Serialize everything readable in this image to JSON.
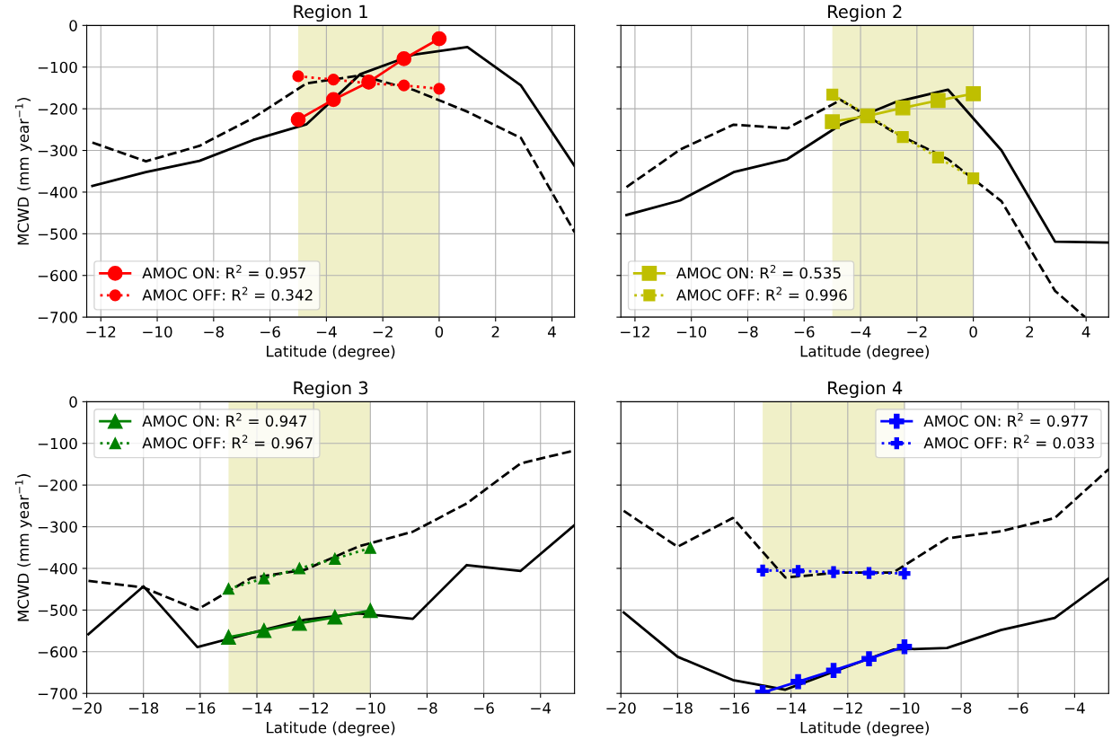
{
  "chart_data": [
    {
      "type": "line",
      "title": "Region 1",
      "xlabel": "Latitude (degree)",
      "ylabel": "MCWD (mm year$^{−1}$)",
      "xlim": [
        -12.5,
        4.8
      ],
      "ylim": [
        -700,
        0
      ],
      "xticks": [
        -12,
        -10,
        -8,
        -6,
        -4,
        -2,
        0,
        2,
        4
      ],
      "yticks": [
        -700,
        -600,
        -500,
        -400,
        -300,
        -200,
        -100,
        0
      ],
      "grid": true,
      "legend": "bottom left",
      "bands": [
        {
          "axis": "x",
          "from": -5,
          "to": 0,
          "color": "#f0f0c8"
        }
      ],
      "series": [
        {
          "color": "#000000",
          "line_style": "solid",
          "marker": "none",
          "x": [
            -12.3,
            -10.4,
            -8.5,
            -6.6,
            -4.7,
            -2.8,
            -0.9,
            1.0,
            2.9,
            4.8
          ],
          "values": [
            -385,
            -352,
            -325,
            -275,
            -237,
            -117,
            -70,
            -52,
            -144,
            -337
          ]
        },
        {
          "color": "#000000",
          "line_style": "dashed",
          "marker": "none",
          "x": [
            -12.3,
            -10.4,
            -8.5,
            -6.6,
            -4.7,
            -2.8,
            -0.9,
            1.0,
            2.9,
            4.8
          ],
          "values": [
            -281,
            -326,
            -289,
            -222,
            -139,
            -120,
            -155,
            -207,
            -270,
            -496
          ]
        },
        {
          "name": "AMOC ON: R$^{2}$ = 0.957",
          "color": "#ff0000",
          "line_style": "solid",
          "marker": "circle",
          "x": [
            -5,
            -3.75,
            -2.5,
            -1.25,
            0
          ],
          "values": [
            -226,
            -178,
            -136,
            -80,
            -32
          ]
        },
        {
          "name": "AMOC OFF: R$^{2}$ = 0.342",
          "color": "#ff0000",
          "line_style": "dotted",
          "marker": "circle",
          "x": [
            -5,
            -3.75,
            -2.5,
            -1.25,
            0
          ],
          "values": [
            -122,
            -130,
            -139,
            -144,
            -152
          ]
        }
      ]
    },
    {
      "type": "line",
      "title": "Region 2",
      "xlabel": "Latitude (degree)",
      "xlim": [
        -12.5,
        4.8
      ],
      "ylim": [
        -700,
        0
      ],
      "xticks": [
        -12,
        -10,
        -8,
        -6,
        -4,
        -2,
        0,
        2,
        4
      ],
      "yticks": [
        -700,
        -600,
        -500,
        -400,
        -300,
        -200,
        -100,
        0
      ],
      "tick_labels": "x",
      "grid": true,
      "legend": "bottom left",
      "bands": [
        {
          "axis": "x",
          "from": -5,
          "to": 0,
          "color": "#f0f0c8"
        }
      ],
      "series": [
        {
          "color": "#000000",
          "line_style": "solid",
          "marker": "none",
          "x": [
            -12.3,
            -10.4,
            -8.5,
            -6.6,
            -4.7,
            -2.8,
            -0.9,
            1.0,
            2.9,
            4.8
          ],
          "values": [
            -455,
            -420,
            -352,
            -321,
            -238,
            -185,
            -154,
            -300,
            -519,
            -521
          ]
        },
        {
          "color": "#000000",
          "line_style": "dashed",
          "marker": "none",
          "x": [
            -12.3,
            -10.4,
            -8.5,
            -6.6,
            -4.7,
            -2.8,
            -0.9,
            1.0,
            2.9,
            3.96
          ],
          "values": [
            -388,
            -298,
            -238,
            -247,
            -179,
            -257,
            -321,
            -422,
            -637,
            -700
          ]
        },
        {
          "name": "AMOC ON: R$^{2}$ = 0.535",
          "color": "#bfbf00",
          "line_style": "solid",
          "marker": "square",
          "x": [
            -5,
            -3.75,
            -2.5,
            -1.25,
            0
          ],
          "values": [
            -231,
            -217,
            -198,
            -180,
            -164
          ]
        },
        {
          "name": "AMOC OFF: R$^{2}$ = 0.996",
          "color": "#bfbf00",
          "line_style": "dotted",
          "marker": "square",
          "x": [
            -5,
            -3.75,
            -2.5,
            -1.25,
            0
          ],
          "values": [
            -166,
            -215,
            -268,
            -317,
            -367
          ]
        }
      ]
    },
    {
      "type": "line",
      "title": "Region 3",
      "xlabel": "Latitude (degree)",
      "ylabel": "MCWD (mm year$^{−1}$)",
      "xlim": [
        -20,
        -2.8
      ],
      "ylim": [
        -700,
        0
      ],
      "xticks": [
        -20,
        -18,
        -16,
        -14,
        -12,
        -10,
        -8,
        -6,
        -4
      ],
      "yticks": [
        -700,
        -600,
        -500,
        -400,
        -300,
        -200,
        -100,
        0
      ],
      "grid": true,
      "legend": "top left",
      "bands": [
        {
          "axis": "x",
          "from": -15,
          "to": -10,
          "color": "#f0f0c8"
        }
      ],
      "series": [
        {
          "color": "#000000",
          "line_style": "solid",
          "marker": "none",
          "x": [
            -19.94,
            -18.0,
            -16.1,
            -14.2,
            -12.3,
            -10.4,
            -8.5,
            -6.6,
            -4.7,
            -2.8
          ],
          "values": [
            -558,
            -443,
            -589,
            -555,
            -523,
            -508,
            -521,
            -392,
            -406,
            -296
          ]
        },
        {
          "color": "#000000",
          "line_style": "dashed",
          "marker": "none",
          "x": [
            -19.94,
            -18.0,
            -16.1,
            -14.2,
            -12.3,
            -10.4,
            -8.5,
            -6.6,
            -4.7,
            -2.8
          ],
          "values": [
            -430,
            -446,
            -499,
            -423,
            -403,
            -347,
            -312,
            -244,
            -148,
            -117
          ]
        },
        {
          "name": "AMOC ON: R$^{2}$ = 0.947",
          "color": "#008000",
          "line_style": "solid",
          "marker": "triangle",
          "x": [
            -15,
            -13.75,
            -12.5,
            -11.25,
            -10
          ],
          "values": [
            -565,
            -549,
            -532,
            -517,
            -501
          ]
        },
        {
          "name": "AMOC OFF: R$^{2}$ = 0.967",
          "color": "#008000",
          "line_style": "dotted",
          "marker": "triangle",
          "x": [
            -15,
            -13.75,
            -12.5,
            -11.25,
            -10
          ],
          "values": [
            -449,
            -424,
            -400,
            -377,
            -351
          ]
        }
      ]
    },
    {
      "type": "line",
      "title": "Region 4",
      "xlabel": "Latitude (degree)",
      "xlim": [
        -20,
        -2.8
      ],
      "ylim": [
        -700,
        0
      ],
      "xticks": [
        -20,
        -18,
        -16,
        -14,
        -12,
        -10,
        -8,
        -6,
        -4
      ],
      "yticks": [
        -700,
        -600,
        -500,
        -400,
        -300,
        -200,
        -100,
        0
      ],
      "tick_labels": "x",
      "grid": true,
      "legend": "top right",
      "bands": [
        {
          "axis": "x",
          "from": -15,
          "to": -10,
          "color": "#f0f0c8"
        }
      ],
      "series": [
        {
          "color": "#000000",
          "line_style": "solid",
          "marker": "none",
          "x": [
            -19.9,
            -18.0,
            -16.05,
            -14.2,
            -12.3,
            -10.4,
            -8.5,
            -6.6,
            -4.7,
            -2.8
          ],
          "values": [
            -506,
            -612,
            -668,
            -691,
            -643,
            -595,
            -591,
            -548,
            -519,
            -424
          ]
        },
        {
          "color": "#000000",
          "line_style": "dashed",
          "marker": "none",
          "x": [
            -19.9,
            -18.0,
            -16.05,
            -14.2,
            -12.3,
            -10.4,
            -8.5,
            -6.6,
            -4.7,
            -2.8
          ],
          "values": [
            -262,
            -348,
            -279,
            -422,
            -410,
            -410,
            -328,
            -311,
            -279,
            -162
          ]
        },
        {
          "name": "AMOC ON: R$^{2}$ = 0.977",
          "color": "#0000ff",
          "line_style": "solid",
          "marker": "cross",
          "x": [
            -15,
            -13.75,
            -12.5,
            -11.25,
            -10
          ],
          "values": [
            -698,
            -672,
            -645,
            -617,
            -588
          ]
        },
        {
          "name": "AMOC OFF: R$^{2}$ = 0.033",
          "color": "#0000ff",
          "line_style": "dotted",
          "marker": "cross",
          "x": [
            -15,
            -13.75,
            -12.5,
            -11.25,
            -10
          ],
          "values": [
            -405,
            -406,
            -409,
            -411,
            -412
          ]
        }
      ]
    }
  ]
}
